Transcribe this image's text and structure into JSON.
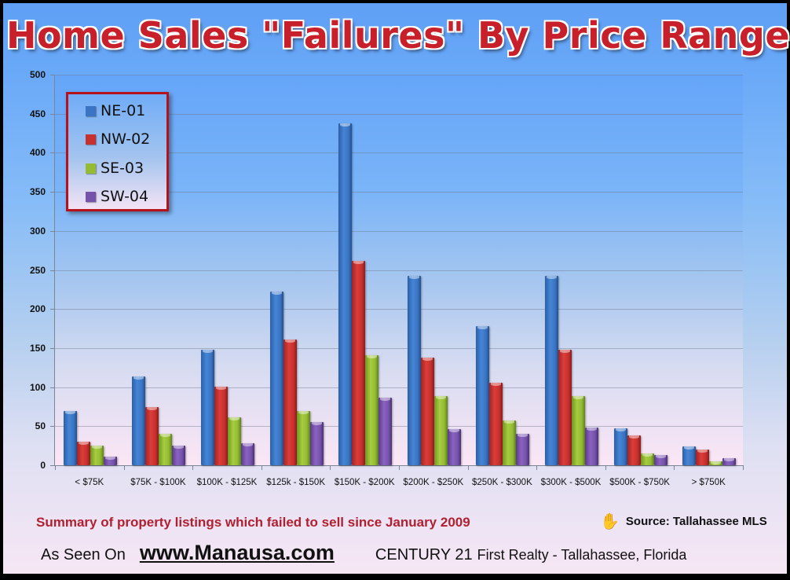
{
  "title": "Home Sales \"Failures\" By Price Range",
  "colors": {
    "NE-01": "#3b74c2",
    "NW-02": "#c6302e",
    "SE-03": "#94bb33",
    "SW-04": "#7653ab",
    "title": "#c8202a",
    "legend_border": "#b5121b",
    "summary_text": "#b02030"
  },
  "legend": {
    "items": [
      {
        "label": "NE-01",
        "icon": "blue-square"
      },
      {
        "label": "NW-02",
        "icon": "red-square"
      },
      {
        "label": "SE-03",
        "icon": "green-square"
      },
      {
        "label": "SW-04",
        "icon": "purple-square"
      }
    ]
  },
  "y_axis": {
    "ticks": [
      "0",
      "50",
      "100",
      "150",
      "200",
      "250",
      "300",
      "350",
      "400",
      "450",
      "500"
    ]
  },
  "x_axis": {
    "labels": [
      "< $75K",
      "$75K - $100K",
      "$100K - $125K",
      "$125k - $150K",
      "$150K - $200K",
      "$200K - $250K",
      "$250K - $300K",
      "$300K - $500K",
      "$500K - $750K",
      "> $750K"
    ]
  },
  "footer": {
    "summary": "Summary of property listings which failed to sell since January 2009",
    "source_icon": "hand-icon",
    "source": "Source: Tallahassee MLS",
    "as_seen_on": "As Seen On",
    "website": "www.Manausa.com",
    "brokerage_main": "CENTURY 21",
    "brokerage_rest": "First Realty - Tallahassee,  Florida"
  },
  "chart_data": {
    "type": "bar",
    "title": "Home Sales \"Failures\" By Price Range",
    "xlabel": "",
    "ylabel": "",
    "ylim": [
      0,
      500
    ],
    "yticks": [
      0,
      50,
      100,
      150,
      200,
      250,
      300,
      350,
      400,
      450,
      500
    ],
    "grid": true,
    "legend_position": "upper-left (inside)",
    "categories": [
      "< $75K",
      "$75K - $100K",
      "$100K - $125K",
      "$125k - $150K",
      "$150K - $200K",
      "$200K - $250K",
      "$250K - $300K",
      "$300K - $500K",
      "$500K - $750K",
      "> $750K"
    ],
    "series": [
      {
        "name": "NE-01",
        "values": [
          69,
          114,
          148,
          222,
          438,
          242,
          178,
          242,
          47,
          24
        ]
      },
      {
        "name": "NW-02",
        "values": [
          30,
          74,
          101,
          161,
          262,
          138,
          106,
          148,
          38,
          20
        ]
      },
      {
        "name": "SE-03",
        "values": [
          25,
          40,
          61,
          69,
          141,
          89,
          57,
          89,
          15,
          5
        ]
      },
      {
        "name": "SW-04",
        "values": [
          11,
          25,
          28,
          55,
          87,
          46,
          40,
          48,
          13,
          9
        ]
      }
    ],
    "annotations": [
      "Summary of property listings which failed to sell since January 2009",
      "Source: Tallahassee MLS"
    ]
  }
}
